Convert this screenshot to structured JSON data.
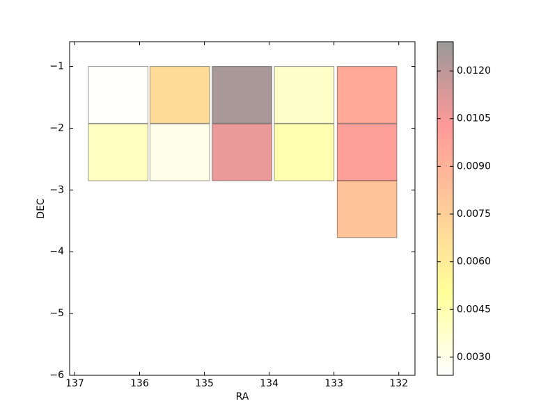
{
  "chart_data": {
    "type": "heatmap",
    "x_label": "RA",
    "y_label": "DEC",
    "ra": [
      136.33,
      135.38,
      134.42,
      133.46,
      132.49,
      136.33,
      135.38,
      134.42,
      133.46,
      132.49,
      132.49
    ],
    "dec": [
      -1.46,
      -1.46,
      -1.46,
      -1.46,
      -1.46,
      -2.39,
      -2.39,
      -2.39,
      -2.39,
      -2.39,
      -3.31
    ],
    "values": [
      0.0025,
      0.0068,
      0.0125,
      0.0038,
      0.0095,
      0.004,
      0.003,
      0.0108,
      0.0045,
      0.01,
      0.0082
    ],
    "cell_size": 0.92,
    "xlim": [
      137.08,
      131.75
    ],
    "xticks": [
      137,
      136,
      135,
      134,
      133,
      132
    ],
    "ylim": [
      -6,
      -0.6
    ],
    "yticks": [
      {
        "value": -1,
        "label": "−1"
      },
      {
        "value": -2,
        "label": "−2"
      },
      {
        "value": -3,
        "label": "−3"
      },
      {
        "value": -4,
        "label": "−4"
      },
      {
        "value": -5,
        "label": "−5"
      },
      {
        "value": -6,
        "label": "−6"
      }
    ],
    "clim": [
      0.00243,
      0.01292
    ],
    "cticks": [
      {
        "value": 0.003,
        "label": "0.0030"
      },
      {
        "value": 0.0045,
        "label": "0.0045"
      },
      {
        "value": 0.006,
        "label": "0.0060"
      },
      {
        "value": 0.0075,
        "label": "0.0075"
      },
      {
        "value": 0.009,
        "label": "0.0090"
      },
      {
        "value": 0.0105,
        "label": "0.0105"
      },
      {
        "value": 0.012,
        "label": "0.0120"
      }
    ],
    "colormap": [
      "#ffffff",
      "#ffff00",
      "#ff8000",
      "#ff0000",
      "#000000"
    ],
    "alpha": 0.4
  }
}
